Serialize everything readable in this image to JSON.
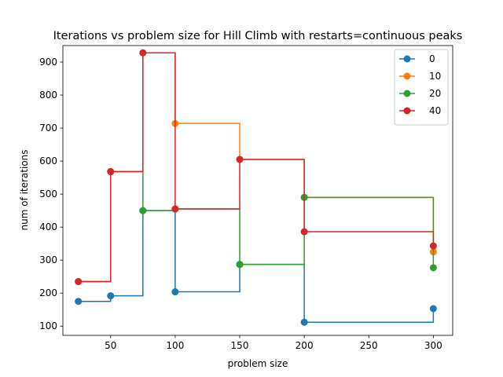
{
  "chart_data": {
    "type": "line",
    "title": "Iterations vs problem size for Hill Climb with restarts=continuous peaks",
    "xlabel": "problem size",
    "ylabel": "num of iterations",
    "xlim": [
      13,
      315
    ],
    "ylim": [
      72,
      950
    ],
    "xticks": [
      50,
      100,
      150,
      200,
      250,
      300
    ],
    "yticks": [
      100,
      200,
      300,
      400,
      500,
      600,
      700,
      800,
      900
    ],
    "x": [
      25,
      50,
      75,
      100,
      150,
      200,
      300
    ],
    "step": "post",
    "grid": false,
    "legend_position": "top-right",
    "series": [
      {
        "name": "0",
        "color": "#1f77b4",
        "values": [
          175,
          192,
          450,
          204,
          287,
          112,
          153
        ]
      },
      {
        "name": "10",
        "color": "#ff7f0e",
        "values": [
          235,
          568,
          928,
          714,
          605,
          490,
          325
        ]
      },
      {
        "name": "20",
        "color": "#2ca02c",
        "values": [
          235,
          568,
          450,
          455,
          287,
          490,
          277
        ]
      },
      {
        "name": "40",
        "color": "#d62728",
        "values": [
          235,
          568,
          928,
          455,
          605,
          386,
          343
        ]
      }
    ]
  }
}
